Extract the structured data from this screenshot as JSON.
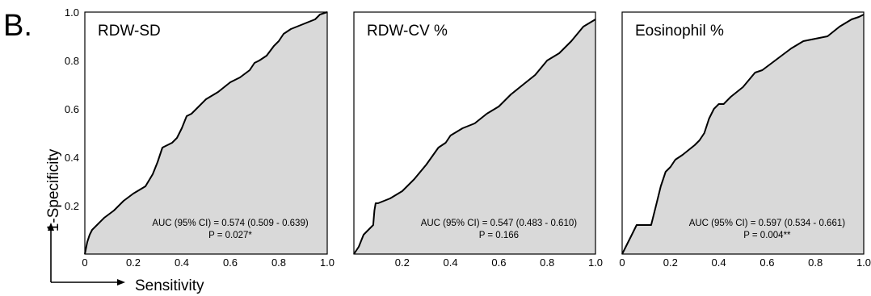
{
  "panel_label": "B.",
  "axes": {
    "ylabel": "1-Specificity",
    "xlabel": "Sensitivity"
  },
  "colors": {
    "fill": "#d9d9d9",
    "line": "#000000",
    "background": "#ffffff"
  },
  "chart_data": [
    {
      "type": "area",
      "title": "RDW-SD",
      "auc_text": "AUC (95% CI) = 0.574 (0.509 - 0.639)",
      "p_text": "P = 0.027*",
      "xlim": [
        0,
        1
      ],
      "ylim": [
        0,
        1
      ],
      "x_ticks": [
        "0",
        "0.2",
        "0.4",
        "0.6",
        "0.8",
        "1.0"
      ],
      "y_ticks": [
        "0.2",
        "0.4",
        "0.6",
        "0.8",
        "1.0"
      ],
      "y_tick_values": [
        0.2,
        0.4,
        0.6,
        0.8,
        1.0
      ],
      "x_tick_values": [
        0,
        0.2,
        0.4,
        0.6,
        0.8,
        1.0
      ],
      "x": [
        0,
        0.01,
        0.02,
        0.03,
        0.05,
        0.08,
        0.12,
        0.16,
        0.2,
        0.25,
        0.28,
        0.3,
        0.32,
        0.34,
        0.36,
        0.38,
        0.4,
        0.42,
        0.44,
        0.46,
        0.5,
        0.55,
        0.6,
        0.64,
        0.68,
        0.7,
        0.72,
        0.75,
        0.78,
        0.8,
        0.82,
        0.85,
        0.9,
        0.95,
        0.97,
        1.0
      ],
      "y": [
        0,
        0.05,
        0.08,
        0.1,
        0.12,
        0.15,
        0.18,
        0.22,
        0.25,
        0.28,
        0.33,
        0.38,
        0.44,
        0.45,
        0.46,
        0.48,
        0.52,
        0.57,
        0.58,
        0.6,
        0.64,
        0.67,
        0.71,
        0.73,
        0.76,
        0.79,
        0.8,
        0.82,
        0.86,
        0.88,
        0.91,
        0.93,
        0.95,
        0.97,
        0.99,
        1.0
      ]
    },
    {
      "type": "area",
      "title": "RDW-CV %",
      "auc_text": "AUC (95% CI) = 0.547 (0.483 - 0.610)",
      "p_text": "P = 0.166",
      "xlim": [
        0,
        1
      ],
      "ylim": [
        0,
        1
      ],
      "x_ticks": [
        "0.2",
        "0.4",
        "0.6",
        "0.8",
        "1.0"
      ],
      "x_tick_values": [
        0.2,
        0.4,
        0.6,
        0.8,
        1.0
      ],
      "x": [
        0,
        0.02,
        0.04,
        0.06,
        0.08,
        0.085,
        0.09,
        0.1,
        0.15,
        0.2,
        0.25,
        0.3,
        0.35,
        0.38,
        0.4,
        0.45,
        0.5,
        0.55,
        0.6,
        0.65,
        0.7,
        0.75,
        0.8,
        0.85,
        0.9,
        0.95,
        1.0
      ],
      "y": [
        0,
        0.03,
        0.08,
        0.1,
        0.12,
        0.18,
        0.21,
        0.21,
        0.23,
        0.26,
        0.31,
        0.37,
        0.44,
        0.46,
        0.49,
        0.52,
        0.54,
        0.58,
        0.61,
        0.66,
        0.7,
        0.74,
        0.8,
        0.83,
        0.88,
        0.94,
        0.97
      ]
    },
    {
      "type": "area",
      "title": "Eosinophil %",
      "auc_text": "AUC (95% CI) = 0.597 (0.534 - 0.661)",
      "p_text": "P = 0.004**",
      "xlim": [
        0,
        1
      ],
      "ylim": [
        0,
        1
      ],
      "x_ticks": [
        "0",
        "0.2",
        "0.4",
        "0.6",
        "0.8",
        "1.0"
      ],
      "x_tick_values": [
        0,
        0.2,
        0.4,
        0.6,
        0.8,
        1.0
      ],
      "x": [
        0,
        0.02,
        0.04,
        0.06,
        0.1,
        0.12,
        0.14,
        0.16,
        0.18,
        0.2,
        0.22,
        0.25,
        0.3,
        0.32,
        0.34,
        0.36,
        0.38,
        0.4,
        0.42,
        0.45,
        0.5,
        0.55,
        0.58,
        0.62,
        0.66,
        0.7,
        0.75,
        0.8,
        0.85,
        0.9,
        0.95,
        0.98,
        1.0
      ],
      "y": [
        0,
        0.04,
        0.08,
        0.12,
        0.12,
        0.12,
        0.2,
        0.28,
        0.34,
        0.36,
        0.39,
        0.41,
        0.45,
        0.47,
        0.5,
        0.56,
        0.6,
        0.62,
        0.62,
        0.65,
        0.69,
        0.75,
        0.76,
        0.79,
        0.82,
        0.85,
        0.88,
        0.89,
        0.9,
        0.94,
        0.97,
        0.98,
        0.99
      ]
    }
  ]
}
